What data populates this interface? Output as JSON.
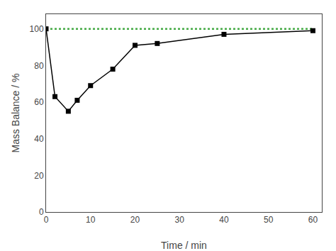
{
  "chart_data": {
    "type": "line",
    "xlabel": "Time / min",
    "ylabel": "Mass Balance / %",
    "xlim": [
      0,
      62
    ],
    "ylim": [
      0,
      108
    ],
    "xticks": [
      0,
      10,
      20,
      30,
      40,
      50,
      60
    ],
    "yticks": [
      0,
      20,
      40,
      60,
      80,
      100
    ],
    "grid": false,
    "series": [
      {
        "x": [
          0,
          60
        ],
        "values": [
          100,
          100
        ],
        "color": "#44aa44",
        "line_style": "dotted"
      },
      {
        "x": [
          0,
          2,
          5,
          7,
          10,
          15,
          20,
          25,
          40,
          60
        ],
        "values": [
          100,
          63,
          55,
          61,
          69,
          78,
          91,
          92,
          97,
          99
        ],
        "color": "#000000",
        "line_style": "solid",
        "marker": "square"
      }
    ]
  }
}
